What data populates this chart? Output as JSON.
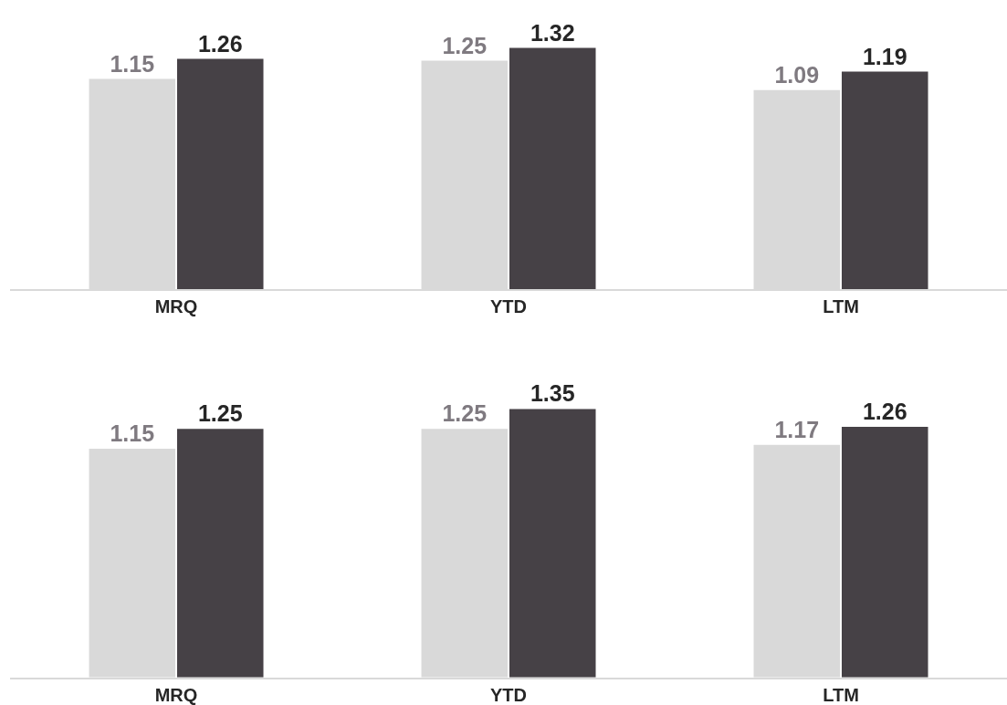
{
  "chart_data": [
    {
      "type": "bar",
      "categories": [
        "MRQ",
        "YTD",
        "LTM"
      ],
      "series": [
        {
          "color": "#d9d9d9",
          "values": [
            1.15,
            1.25,
            1.09
          ]
        },
        {
          "color": "#464146",
          "values": [
            1.26,
            1.32,
            1.19
          ]
        }
      ],
      "data_labels": true,
      "tick_labels": "x"
    },
    {
      "type": "bar",
      "categories": [
        "MRQ",
        "YTD",
        "LTM"
      ],
      "series": [
        {
          "color": "#d9d9d9",
          "values": [
            1.15,
            1.25,
            1.17
          ]
        },
        {
          "color": "#464146",
          "values": [
            1.25,
            1.35,
            1.26
          ]
        }
      ],
      "data_labels": true,
      "tick_labels": "x"
    }
  ]
}
